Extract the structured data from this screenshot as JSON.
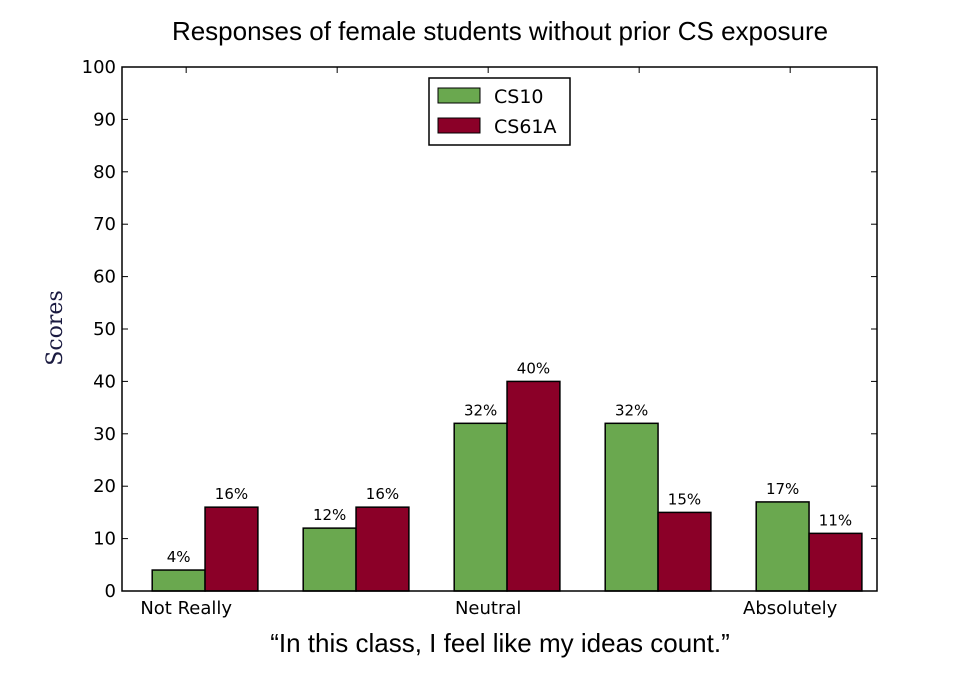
{
  "chart_data": {
    "type": "bar",
    "title": "Responses of female students without prior CS exposure",
    "xlabel": "“In this class, I feel like my ideas count.”",
    "ylabel": "Scores",
    "ylim": [
      0,
      100
    ],
    "yticks": [
      0,
      10,
      20,
      30,
      40,
      50,
      60,
      70,
      80,
      90,
      100
    ],
    "categories": [
      "1",
      "2",
      "3",
      "4",
      "5"
    ],
    "category_tick_labels": [
      "Not Really",
      "",
      "Neutral",
      "",
      "Absolutely"
    ],
    "series": [
      {
        "name": "CS10",
        "color": "#6aa84f",
        "values": [
          4,
          12,
          32,
          32,
          17
        ],
        "labels": [
          "4%",
          "12%",
          "32%",
          "32%",
          "17%"
        ]
      },
      {
        "name": "CS61A",
        "color": "#8b0028",
        "values": [
          16,
          16,
          40,
          15,
          11
        ],
        "labels": [
          "16%",
          "16%",
          "40%",
          "15%",
          "11%"
        ]
      }
    ],
    "legend_position": "top-center",
    "grid": false
  }
}
